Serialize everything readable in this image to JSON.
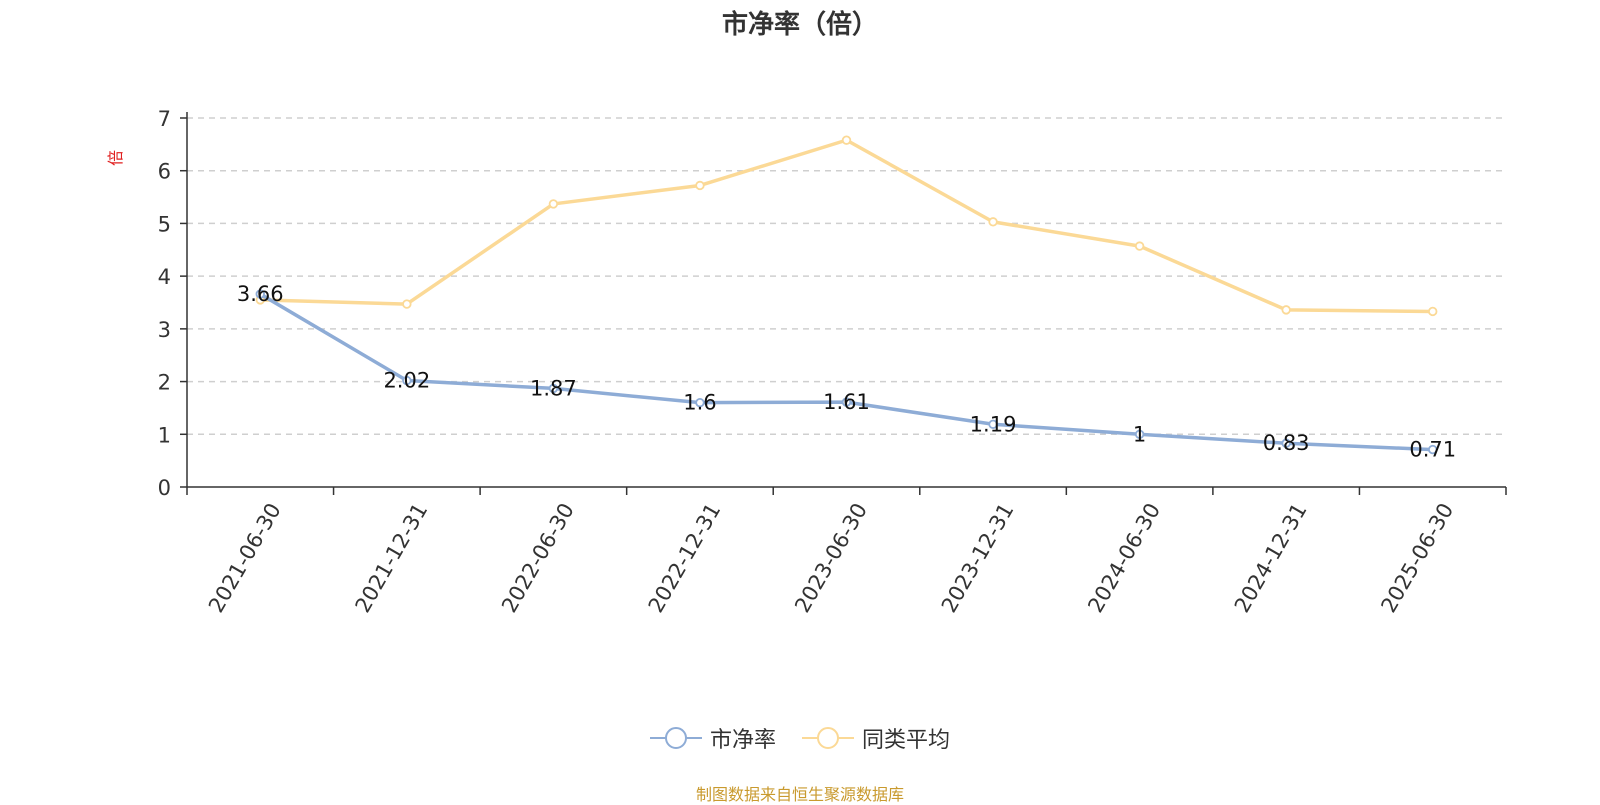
{
  "chart_data": {
    "type": "line",
    "title": "市净率（倍）",
    "ylabel": "倍",
    "ylim": [
      0,
      7
    ],
    "yticks": [
      "0",
      "1",
      "2",
      "3",
      "4",
      "5",
      "6",
      "7"
    ],
    "grid": true,
    "legend_position": "bottom",
    "categories": [
      "2021-06-30",
      "2021-12-31",
      "2022-06-30",
      "2022-12-31",
      "2023-06-30",
      "2023-12-31",
      "2024-06-30",
      "2024-12-31",
      "2025-06-30"
    ],
    "series": [
      {
        "name": "市净率",
        "color": "#8eacd6",
        "values": [
          3.66,
          2.02,
          1.87,
          1.6,
          1.61,
          1.19,
          1,
          0.83,
          0.71
        ],
        "labels": [
          "3.66",
          "2.02",
          "1.87",
          "1.6",
          "1.61",
          "1.19",
          "1",
          "0.83",
          "0.71"
        ]
      },
      {
        "name": "同类平均",
        "color": "#fbd996",
        "values": [
          3.55,
          3.47,
          5.37,
          5.72,
          6.58,
          5.03,
          4.57,
          3.36,
          3.33
        ]
      }
    ]
  },
  "footer": {
    "source": "制图数据来自恒生聚源数据库"
  }
}
